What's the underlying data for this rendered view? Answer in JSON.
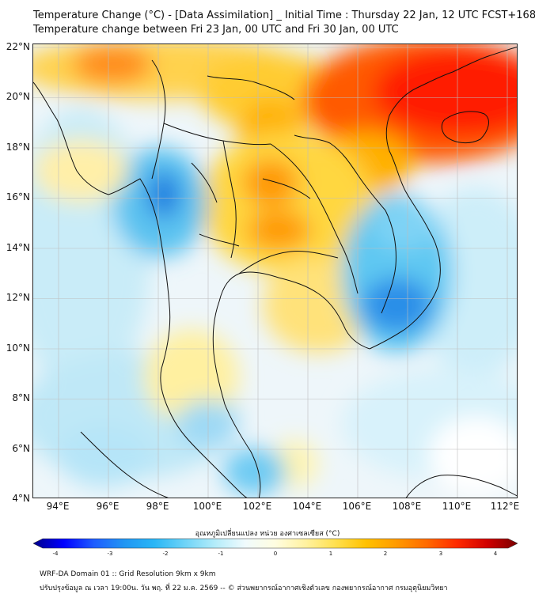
{
  "title": {
    "line1": "Temperature Change (°C) - [Data Assimilation] _ Initial Time : Thursday 22 Jan, 12 UTC FCST+168",
    "line2": "Temperature change between Fri 23 Jan, 00 UTC and Fri 30 Jan, 00 UTC"
  },
  "map": {
    "lat_labels": [
      "22°N",
      "20°N",
      "18°N",
      "16°N",
      "14°N",
      "12°N",
      "10°N",
      "8°N",
      "6°N",
      "4°N"
    ],
    "lon_labels": [
      "94°E",
      "96°E",
      "98°E",
      "100°E",
      "102°E",
      "104°E",
      "106°E",
      "108°E",
      "110°E",
      "112°E"
    ],
    "lat_range": [
      4,
      22
    ],
    "lon_range": [
      93,
      112.5
    ],
    "grid": true,
    "background_color": "#f4f8fb",
    "warm_colors": [
      "#ff0000",
      "#ff6a00",
      "#ffb300",
      "#ffe066",
      "#fff3b0"
    ],
    "cool_colors": [
      "#1e88e5",
      "#29b6f6",
      "#81d4fa",
      "#c8ecfa"
    ],
    "coastline_color": "#111111"
  },
  "colorbar": {
    "title": "อุณหภูมิเปลี่ยนแปลง หน่วย องศาเซลเซียส (°C)",
    "ticks": [
      "-4",
      "-3",
      "-2",
      "-1",
      "0",
      "1",
      "2",
      "3",
      "4"
    ],
    "range": [
      -4,
      4
    ],
    "colors": [
      "#00008b",
      "#0000ff",
      "#1e5cff",
      "#2196f3",
      "#29b6f6",
      "#6dd3f7",
      "#b3ecfa",
      "#f0fbfd",
      "#fffde0",
      "#fff2a0",
      "#ffe04d",
      "#ffc100",
      "#ff9a00",
      "#ff6a00",
      "#ff2a00",
      "#d00000",
      "#7a0000"
    ]
  },
  "footer": {
    "line1": "WRF-DA Domain 01 :: Grid Resolution 9km x 9km",
    "line2": "ปรับปรุงข้อมูล ณ เวลา 19:00น. วัน พฤ. ที่ 22 ม.ค. 2569 -- © ส่วนพยากรณ์อากาศเชิงตัวเลข กองพยากรณ์อากาศ กรมอุตุนิยมวิทยา"
  }
}
